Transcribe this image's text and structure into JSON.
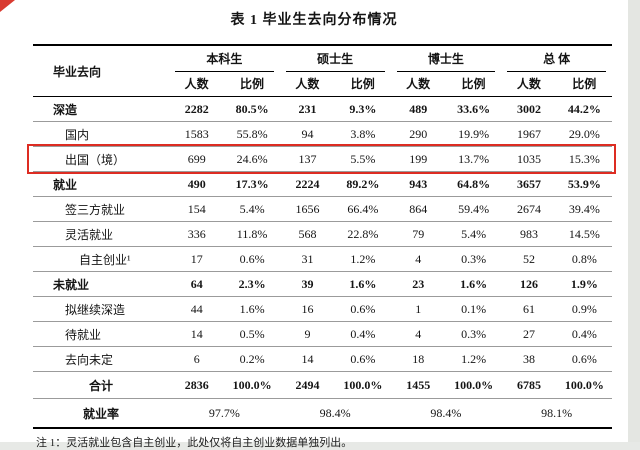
{
  "page": {
    "title": "表 1 毕业生去向分布情况",
    "footnote": "注 1：灵活就业包含自主创业，此处仅将自主创业数据单独列出。"
  },
  "table": {
    "header": {
      "destination": "毕业去向",
      "groups": [
        {
          "label": "本科生",
          "sub": [
            "人数",
            "比例"
          ]
        },
        {
          "label": "硕士生",
          "sub": [
            "人数",
            "比例"
          ]
        },
        {
          "label": "博士生",
          "sub": [
            "人数",
            "比例"
          ]
        },
        {
          "label": "总 体",
          "sub": [
            "人数",
            "比例"
          ]
        }
      ]
    },
    "rows": [
      {
        "label": "深造",
        "level": 0,
        "bold": true,
        "total": false,
        "highlight": false,
        "values": [
          "2282",
          "80.5%",
          "231",
          "9.3%",
          "489",
          "33.6%",
          "3002",
          "44.2%"
        ]
      },
      {
        "label": "国内",
        "level": 1,
        "bold": false,
        "total": false,
        "highlight": false,
        "values": [
          "1583",
          "55.8%",
          "94",
          "3.8%",
          "290",
          "19.9%",
          "1967",
          "29.0%"
        ]
      },
      {
        "label": "出国（境）",
        "level": 1,
        "bold": false,
        "total": false,
        "highlight": true,
        "values": [
          "699",
          "24.6%",
          "137",
          "5.5%",
          "199",
          "13.7%",
          "1035",
          "15.3%"
        ]
      },
      {
        "label": "就业",
        "level": 0,
        "bold": true,
        "total": false,
        "highlight": false,
        "values": [
          "490",
          "17.3%",
          "2224",
          "89.2%",
          "943",
          "64.8%",
          "3657",
          "53.9%"
        ]
      },
      {
        "label": "签三方就业",
        "level": 1,
        "bold": false,
        "total": false,
        "highlight": false,
        "values": [
          "154",
          "5.4%",
          "1656",
          "66.4%",
          "864",
          "59.4%",
          "2674",
          "39.4%"
        ]
      },
      {
        "label": "灵活就业",
        "level": 1,
        "bold": false,
        "total": false,
        "highlight": false,
        "values": [
          "336",
          "11.8%",
          "568",
          "22.8%",
          "79",
          "5.4%",
          "983",
          "14.5%"
        ]
      },
      {
        "label": "自主创业¹",
        "level": 2,
        "bold": false,
        "total": false,
        "highlight": false,
        "values": [
          "17",
          "0.6%",
          "31",
          "1.2%",
          "4",
          "0.3%",
          "52",
          "0.8%"
        ]
      },
      {
        "label": "未就业",
        "level": 0,
        "bold": true,
        "total": false,
        "highlight": false,
        "values": [
          "64",
          "2.3%",
          "39",
          "1.6%",
          "23",
          "1.6%",
          "126",
          "1.9%"
        ]
      },
      {
        "label": "拟继续深造",
        "level": 1,
        "bold": false,
        "total": false,
        "highlight": false,
        "values": [
          "44",
          "1.6%",
          "16",
          "0.6%",
          "1",
          "0.1%",
          "61",
          "0.9%"
        ]
      },
      {
        "label": "待就业",
        "level": 1,
        "bold": false,
        "total": false,
        "highlight": false,
        "values": [
          "14",
          "0.5%",
          "9",
          "0.4%",
          "4",
          "0.3%",
          "27",
          "0.4%"
        ]
      },
      {
        "label": "去向未定",
        "level": 1,
        "bold": false,
        "total": false,
        "highlight": false,
        "values": [
          "6",
          "0.2%",
          "14",
          "0.6%",
          "18",
          "1.2%",
          "38",
          "0.6%"
        ]
      },
      {
        "label": "合计",
        "level": 0,
        "bold": true,
        "total": true,
        "highlight": false,
        "values": [
          "2836",
          "100.0%",
          "2494",
          "100.0%",
          "1455",
          "100.0%",
          "6785",
          "100.0%"
        ]
      }
    ],
    "employment_rate": {
      "label": "就业率",
      "values": [
        "97.7%",
        "98.4%",
        "98.4%",
        "98.1%"
      ]
    }
  },
  "annotations": {
    "highlight_color": "#dd2c22",
    "corner_color": "#d93a30"
  }
}
